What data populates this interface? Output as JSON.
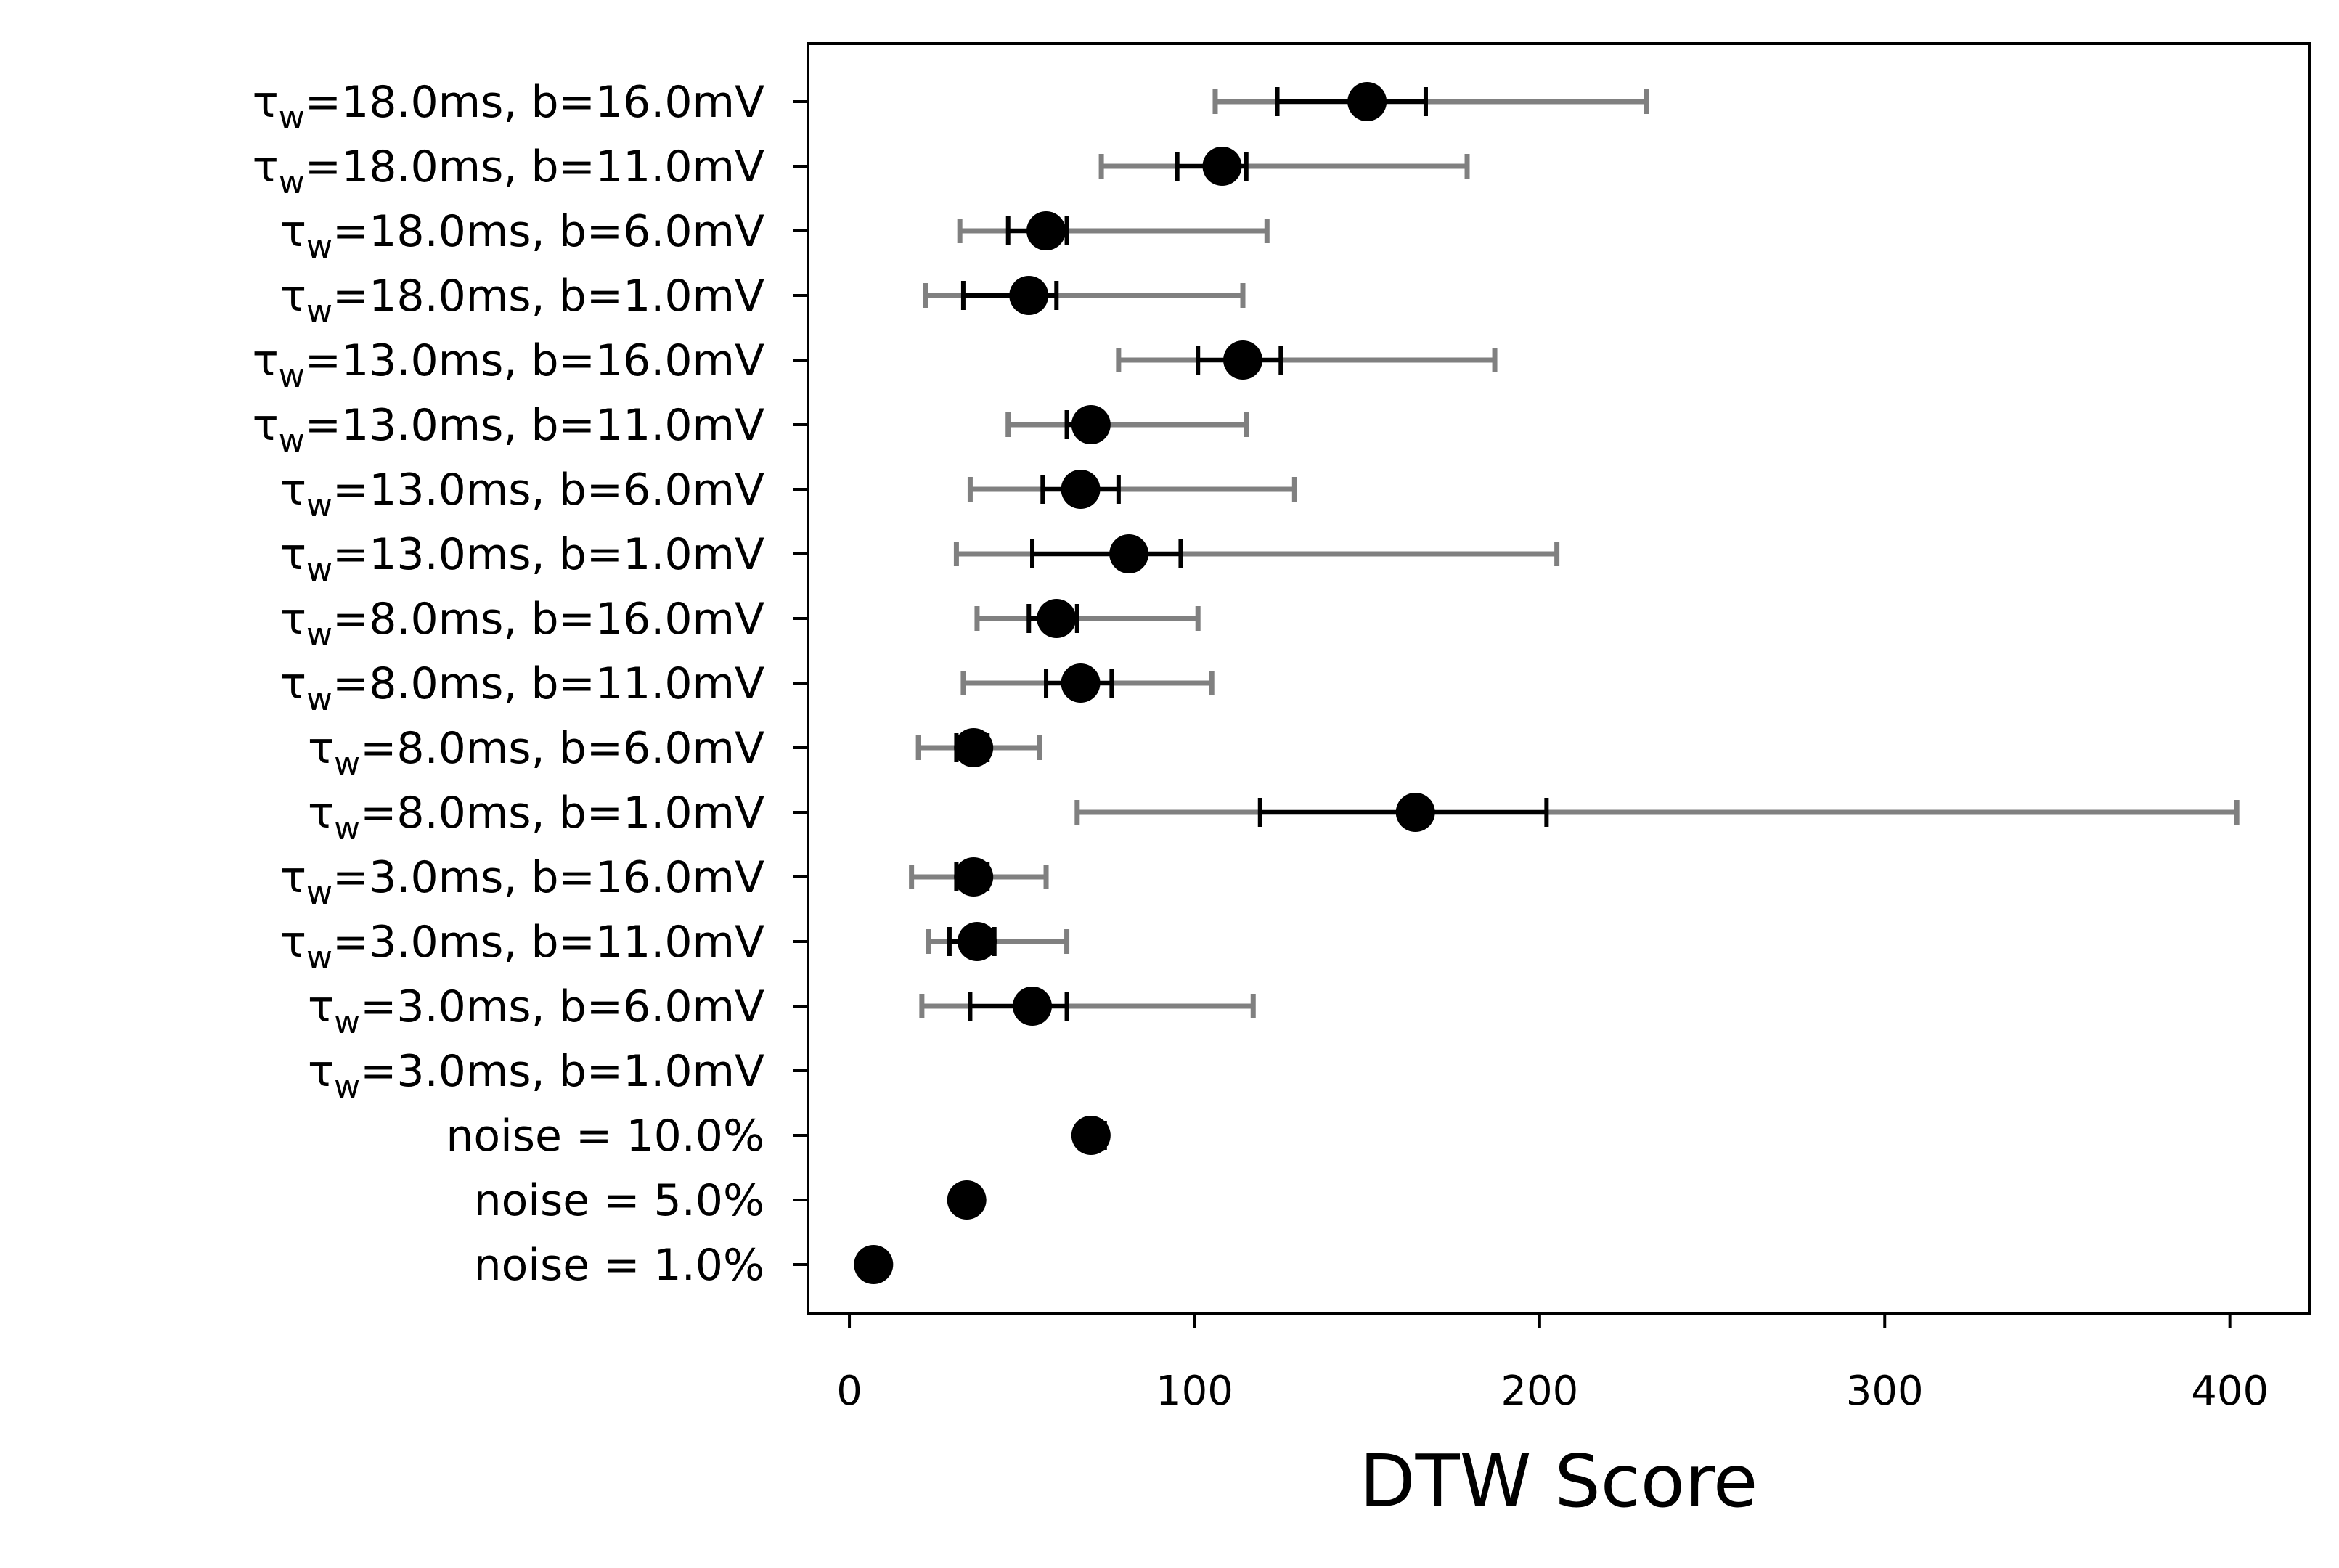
{
  "chart_data": {
    "type": "scatter",
    "orientation": "horizontal",
    "xlabel": "DTW Score",
    "title": "",
    "xlim": [
      -12,
      423
    ],
    "xticks": [
      0,
      100,
      200,
      300,
      400
    ],
    "grid": false,
    "legend": "none",
    "colors": {
      "point": "#000000",
      "inner_error": "#000000",
      "outer_error": "#808080"
    },
    "categories": [
      {
        "tau": "18.0ms",
        "b": "b=16.0mV"
      },
      {
        "tau": "18.0ms",
        "b": "b=11.0mV"
      },
      {
        "tau": "18.0ms",
        "b": "b=6.0mV"
      },
      {
        "tau": "18.0ms",
        "b": "b=1.0mV"
      },
      {
        "tau": "13.0ms",
        "b": "b=16.0mV"
      },
      {
        "tau": "13.0ms",
        "b": "b=11.0mV"
      },
      {
        "tau": "13.0ms",
        "b": "b=6.0mV"
      },
      {
        "tau": "13.0ms",
        "b": "b=1.0mV"
      },
      {
        "tau": "8.0ms",
        "b": "b=16.0mV"
      },
      {
        "tau": "8.0ms",
        "b": "b=11.0mV"
      },
      {
        "tau": "8.0ms",
        "b": "b=6.0mV"
      },
      {
        "tau": "8.0ms",
        "b": "b=1.0mV"
      },
      {
        "tau": "3.0ms",
        "b": "b=16.0mV"
      },
      {
        "tau": "3.0ms",
        "b": "b=11.0mV"
      },
      {
        "tau": "3.0ms",
        "b": "b=6.0mV"
      },
      {
        "tau": "3.0ms",
        "b": "b=1.0mV"
      },
      {
        "plain": "noise = 10.0%"
      },
      {
        "plain": "noise = 5.0%"
      },
      {
        "plain": "noise = 1.0%"
      }
    ],
    "values": [
      150,
      108,
      57,
      52,
      114,
      70,
      67,
      81,
      60,
      67,
      36,
      164,
      36,
      37,
      53,
      null,
      70,
      34,
      7
    ],
    "inner_error": [
      [
        124,
        167
      ],
      [
        95,
        115
      ],
      [
        46,
        63
      ],
      [
        33,
        60
      ],
      [
        101,
        125
      ],
      [
        63,
        72
      ],
      [
        56,
        78
      ],
      [
        53,
        96
      ],
      [
        52,
        66
      ],
      [
        57,
        76
      ],
      [
        31,
        40
      ],
      [
        119,
        202
      ],
      [
        31,
        40
      ],
      [
        29,
        42
      ],
      [
        35,
        63
      ],
      null,
      [
        67,
        74
      ],
      null,
      null
    ],
    "outer_error": [
      [
        106,
        231
      ],
      [
        73,
        179
      ],
      [
        32,
        121
      ],
      [
        22,
        114
      ],
      [
        78,
        187
      ],
      [
        46,
        115
      ],
      [
        35,
        129
      ],
      [
        31,
        205
      ],
      [
        37,
        101
      ],
      [
        33,
        105
      ],
      [
        20,
        55
      ],
      [
        66,
        402
      ],
      [
        18,
        57
      ],
      [
        23,
        63
      ],
      [
        21,
        117
      ],
      null,
      null,
      null,
      null
    ]
  }
}
